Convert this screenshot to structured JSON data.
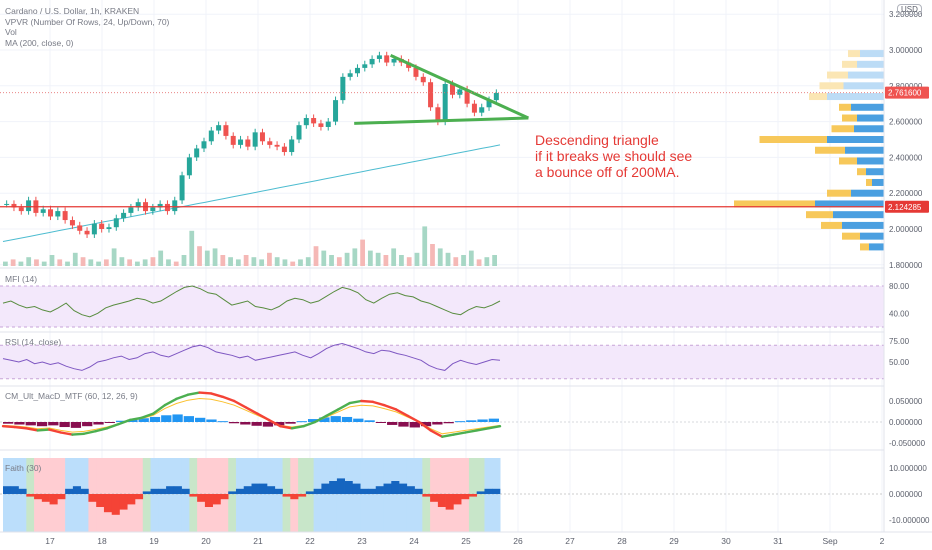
{
  "header": {
    "symbol_line": "Cardano / U.S. Dollar, 1h, KRAKEN",
    "indicators": [
      "VPVR (Number Of Rows, 24, Up/Down, 70)",
      "Vol",
      "MA (200, close, 0)"
    ],
    "currency_badge": "USD"
  },
  "annotation": {
    "line1": "Descending triangle",
    "line2": "if it breaks we should see",
    "line3": "a bounce off of 200MA."
  },
  "panes": {
    "mfi": {
      "title": "MFI (14)",
      "ticks": [
        "80.00",
        "40.00"
      ]
    },
    "rsi": {
      "title": "RSI (14, close)",
      "ticks": [
        "75.00",
        "50.00"
      ]
    },
    "macd": {
      "title": "CM_Ult_MacD_MTF (60, 12, 26, 9)",
      "ticks": [
        "0.050000",
        "0.000000",
        "-0.050000"
      ]
    },
    "faith": {
      "title": "Faith (30)",
      "ticks": [
        "10.000000",
        "0.000000",
        "-10.000000"
      ]
    }
  },
  "time_axis": [
    "17",
    "18",
    "19",
    "20",
    "21",
    "22",
    "23",
    "24",
    "25",
    "26",
    "27",
    "28",
    "29",
    "30",
    "31",
    "Sep",
    "2"
  ],
  "chart_data": {
    "type": "line",
    "price_axis": {
      "ticks": [
        "3.200000",
        "3.000000",
        "2.800000",
        "2.600000",
        "2.400000",
        "2.200000",
        "2.000000",
        "1.800000"
      ],
      "ylim": [
        1.8,
        3.2
      ]
    },
    "price_labels": {
      "last": "2.761600",
      "support": "2.124285"
    },
    "colors": {
      "up": "#26a69a",
      "down": "#ef5350",
      "ma": "#4dbcd0",
      "annotation": "#e53935",
      "triangle": "#4caf50"
    },
    "price_close": [
      2.14,
      2.12,
      2.1,
      2.16,
      2.09,
      2.11,
      2.07,
      2.1,
      2.05,
      2.02,
      1.99,
      1.97,
      2.03,
      2.0,
      2.01,
      2.06,
      2.09,
      2.12,
      2.15,
      2.1,
      2.12,
      2.14,
      2.1,
      2.16,
      2.3,
      2.4,
      2.45,
      2.49,
      2.55,
      2.58,
      2.52,
      2.47,
      2.5,
      2.46,
      2.54,
      2.49,
      2.47,
      2.46,
      2.43,
      2.5,
      2.58,
      2.62,
      2.59,
      2.57,
      2.6,
      2.72,
      2.85,
      2.87,
      2.9,
      2.92,
      2.95,
      2.97,
      2.93,
      2.95,
      2.93,
      2.9,
      2.85,
      2.82,
      2.68,
      2.6,
      2.81,
      2.75,
      2.78,
      2.7,
      2.65,
      2.68,
      2.72,
      2.76
    ],
    "ma200": [
      1.93,
      1.94,
      1.95,
      1.96,
      1.97,
      1.98,
      1.99,
      2.0,
      2.01,
      2.02,
      2.03,
      2.04,
      2.05,
      2.06,
      2.07,
      2.08,
      2.09,
      2.1,
      2.11,
      2.12,
      2.13,
      2.14,
      2.15,
      2.16,
      2.17,
      2.18,
      2.19,
      2.2,
      2.21,
      2.22,
      2.23,
      2.24,
      2.25,
      2.26,
      2.27,
      2.28,
      2.29,
      2.3,
      2.31,
      2.32,
      2.33,
      2.34,
      2.35,
      2.36,
      2.37,
      2.38,
      2.39,
      2.4,
      2.41,
      2.42,
      2.43,
      2.44,
      2.45,
      2.46,
      2.47
    ],
    "volume": [
      2,
      3,
      2,
      4,
      3,
      2,
      5,
      3,
      2,
      6,
      4,
      3,
      2,
      3,
      8,
      4,
      3,
      2,
      3,
      4,
      7,
      3,
      2,
      5,
      16,
      9,
      7,
      8,
      5,
      4,
      3,
      5,
      4,
      3,
      6,
      4,
      3,
      2,
      3,
      4,
      9,
      7,
      5,
      4,
      6,
      8,
      12,
      7,
      6,
      5,
      8,
      5,
      4,
      6,
      18,
      10,
      8,
      6,
      4,
      5,
      7,
      3,
      4,
      5
    ],
    "triangle": {
      "top_start": [
        23.55,
        2.97
      ],
      "bottom_start": [
        22.85,
        2.59
      ],
      "apex": [
        26.2,
        2.62
      ]
    },
    "support_level": 2.124285,
    "vpvr": [
      {
        "price": 2.98,
        "up": 0.08,
        "down": 0.16
      },
      {
        "price": 2.92,
        "up": 0.1,
        "down": 0.18
      },
      {
        "price": 2.86,
        "up": 0.14,
        "down": 0.24
      },
      {
        "price": 2.8,
        "up": 0.16,
        "down": 0.27
      },
      {
        "price": 2.74,
        "up": 0.12,
        "down": 0.38
      },
      {
        "price": 2.68,
        "up": 0.08,
        "down": 0.22
      },
      {
        "price": 2.62,
        "up": 0.1,
        "down": 0.18
      },
      {
        "price": 2.56,
        "up": 0.15,
        "down": 0.2
      },
      {
        "price": 2.5,
        "up": 0.45,
        "down": 0.38
      },
      {
        "price": 2.44,
        "up": 0.2,
        "down": 0.26
      },
      {
        "price": 2.38,
        "up": 0.12,
        "down": 0.18
      },
      {
        "price": 2.32,
        "up": 0.06,
        "down": 0.12
      },
      {
        "price": 2.26,
        "up": 0.04,
        "down": 0.08
      },
      {
        "price": 2.2,
        "up": 0.16,
        "down": 0.22
      },
      {
        "price": 2.14,
        "up": 0.54,
        "down": 0.46
      },
      {
        "price": 2.08,
        "up": 0.18,
        "down": 0.34
      },
      {
        "price": 2.02,
        "up": 0.14,
        "down": 0.28
      },
      {
        "price": 1.96,
        "up": 0.12,
        "down": 0.16
      },
      {
        "price": 1.9,
        "up": 0.06,
        "down": 0.1
      }
    ],
    "mfi": [
      55,
      58,
      52,
      48,
      50,
      45,
      42,
      48,
      55,
      44,
      38,
      35,
      40,
      48,
      52,
      55,
      58,
      62,
      60,
      55,
      58,
      65,
      72,
      78,
      80,
      76,
      70,
      68,
      60,
      52,
      55,
      58,
      50,
      48,
      45,
      50,
      58,
      62,
      60,
      55,
      58,
      65,
      72,
      78,
      75,
      70,
      60,
      55,
      62,
      68,
      70,
      66,
      64,
      58,
      55,
      50,
      45,
      40,
      38,
      45,
      50,
      48,
      52,
      58
    ],
    "rsi": [
      54,
      52,
      50,
      53,
      48,
      50,
      47,
      49,
      45,
      42,
      40,
      44,
      50,
      52,
      55,
      57,
      53,
      55,
      60,
      62,
      58,
      56,
      60,
      64,
      68,
      70,
      67,
      62,
      60,
      58,
      55,
      57,
      52,
      54,
      56,
      58,
      60,
      62,
      58,
      55,
      60,
      66,
      70,
      72,
      69,
      66,
      62,
      60,
      64,
      63,
      60,
      58,
      55,
      52,
      46,
      42,
      40,
      48,
      52,
      49,
      47,
      50,
      53,
      52
    ],
    "macd_fast": [
      -0.01,
      -0.012,
      -0.015,
      -0.02,
      -0.018,
      -0.025,
      -0.03,
      -0.028,
      -0.022,
      -0.015,
      -0.005,
      0.005,
      0.01,
      0.02,
      0.04,
      0.055,
      0.065,
      0.07,
      0.068,
      0.06,
      0.05,
      0.035,
      0.02,
      0.005,
      -0.01,
      -0.015,
      -0.01,
      0.0,
      0.015,
      0.03,
      0.045,
      0.05,
      0.048,
      0.04,
      0.03,
      0.015,
      0.0,
      -0.02,
      -0.035,
      -0.03,
      -0.025,
      -0.02,
      -0.015,
      -0.01
    ],
    "macd_hist": [
      -0.004,
      -0.006,
      -0.008,
      -0.01,
      -0.008,
      -0.012,
      -0.014,
      -0.01,
      -0.006,
      -0.002,
      0.003,
      0.006,
      0.009,
      0.012,
      0.016,
      0.018,
      0.014,
      0.01,
      0.006,
      0.002,
      -0.003,
      -0.006,
      -0.009,
      -0.011,
      -0.008,
      -0.004,
      0.002,
      0.007,
      0.011,
      0.014,
      0.012,
      0.008,
      0.004,
      -0.002,
      -0.007,
      -0.011,
      -0.013,
      -0.01,
      -0.006,
      -0.003,
      0.002,
      0.004,
      0.006,
      0.008
    ],
    "faith": [
      3,
      3,
      2,
      -1,
      -2,
      -3,
      -4,
      -2,
      2,
      3,
      2,
      -3,
      -5,
      -7,
      -8,
      -6,
      -4,
      -2,
      1,
      2,
      2,
      3,
      3,
      2,
      -1,
      -3,
      -5,
      -4,
      -2,
      1,
      2,
      3,
      4,
      4,
      3,
      2,
      -1,
      -2,
      -1,
      1,
      2,
      4,
      5,
      6,
      5,
      4,
      2,
      2,
      3,
      4,
      5,
      4,
      3,
      2,
      -1,
      -3,
      -5,
      -6,
      -4,
      -2,
      -1,
      1,
      2,
      2
    ]
  }
}
